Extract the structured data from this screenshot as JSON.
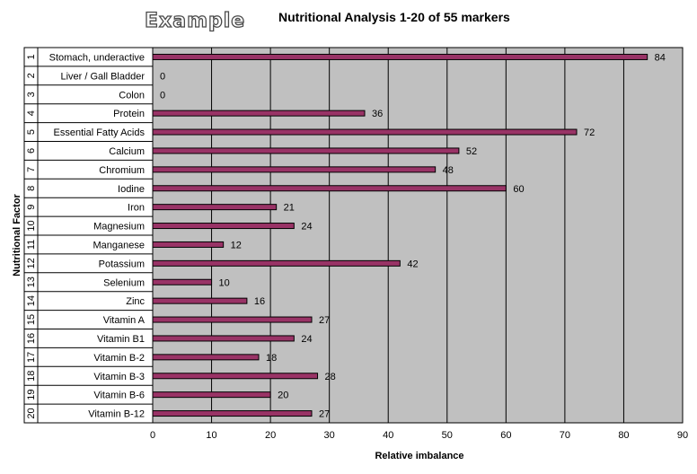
{
  "watermark": "Example",
  "chart_data": {
    "type": "bar",
    "orientation": "horizontal",
    "title": "Nutritional Analysis 1-20 of 55 markers",
    "xlabel": "Relative imbalance",
    "ylabel": "Nutritional Factor",
    "xlim": [
      0,
      90
    ],
    "x_ticks": [
      0,
      10,
      20,
      30,
      40,
      50,
      60,
      70,
      80,
      90
    ],
    "grid": true,
    "numbers": [
      "1",
      "2",
      "3",
      "4",
      "5",
      "6",
      "7",
      "8",
      "9",
      "10",
      "11",
      "12",
      "13",
      "14",
      "15",
      "16",
      "17",
      "18",
      "19",
      "20"
    ],
    "categories": [
      "Stomach, underactive",
      "Liver / Gall Bladder",
      "Colon",
      "Protein",
      "Essential Fatty Acids",
      "Calcium",
      "Chromium",
      "Iodine",
      "Iron",
      "Magnesium",
      "Manganese",
      "Potassium",
      "Selenium",
      "Zinc",
      "Vitamin A",
      "Vitamin B1",
      "Vitamin B-2",
      "Vitamin B-3",
      "Vitamin B-6",
      "Vitamin B-12"
    ],
    "values": [
      84,
      0,
      0,
      36,
      72,
      52,
      48,
      60,
      21,
      24,
      12,
      42,
      10,
      16,
      27,
      24,
      18,
      28,
      20,
      27
    ],
    "colors": {
      "bar": "#993366",
      "plot_area": "#c0c0c0",
      "grid": "#000000"
    }
  }
}
